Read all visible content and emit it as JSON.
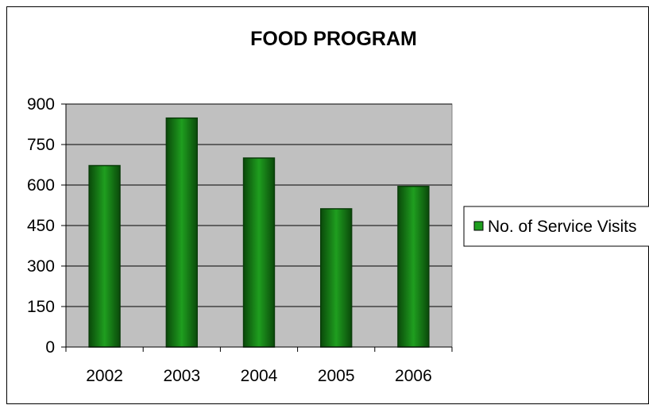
{
  "chart_data": {
    "type": "bar",
    "title": "FOOD PROGRAM",
    "xlabel": "",
    "ylabel": "",
    "categories": [
      "2002",
      "2003",
      "2004",
      "2005",
      "2006"
    ],
    "series": [
      {
        "name": "No. of Service Visits",
        "values": [
          672,
          848,
          700,
          512,
          595
        ]
      }
    ],
    "ylim": [
      0,
      900
    ],
    "yticks": [
      "0",
      "150",
      "300",
      "450",
      "600",
      "750",
      "900"
    ],
    "grid": true,
    "legend_position": "right",
    "colors": {
      "plot_background": "#c0c0c0",
      "bar_edge": "#0a3d0a",
      "bar_center": "#1f9e1f",
      "bar_side": "#0a4a0a",
      "gridline": "#000000"
    }
  }
}
